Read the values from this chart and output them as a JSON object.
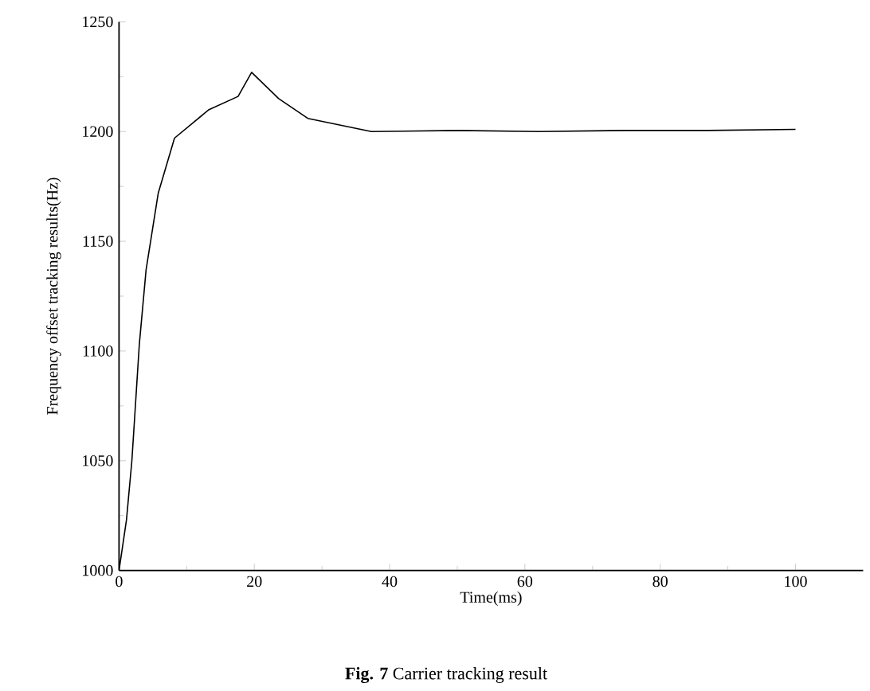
{
  "chart_data": {
    "type": "line",
    "title": "**Fig. 7** Carrier tracking result",
    "xlabel": "Time(ms)",
    "ylabel": "Frequency offset tracking results(Hz)",
    "x": [
      0,
      1.1,
      1.9,
      3.0,
      4.0,
      5.8,
      8.2,
      13.3,
      17.6,
      19.6,
      23.6,
      27.9,
      37.3,
      50,
      62,
      75,
      87,
      100
    ],
    "values": [
      1000,
      1023,
      1050,
      1103,
      1137,
      1172,
      1197,
      1210,
      1216,
      1227,
      1215,
      1206,
      1200,
      1200.5,
      1200,
      1200.5,
      1200.5,
      1201
    ],
    "color": "#000000",
    "xlim": [
      0,
      110
    ],
    "xticks": [
      0,
      20,
      40,
      60,
      80,
      100
    ],
    "ylim": [
      1000,
      1250
    ],
    "yticks": [
      1000,
      1050,
      1100,
      1150,
      1200,
      1250
    ],
    "grid": false,
    "marker": "none",
    "line_style": "solid"
  }
}
